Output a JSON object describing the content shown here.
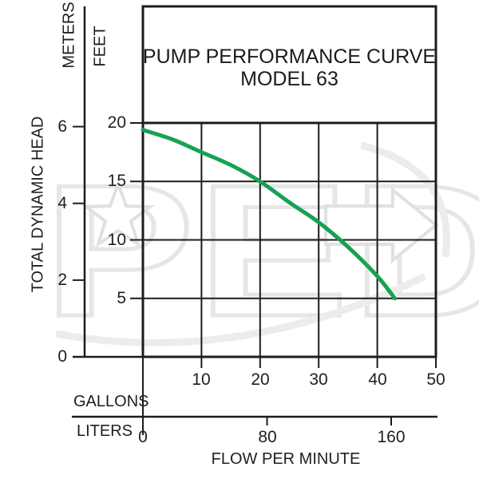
{
  "watermark": {
    "text": "PED",
    "star_icon": "star-icon",
    "arrow_icon": "arrow-right-icon",
    "color": "#e6e6e6"
  },
  "header": {
    "title_line1": "PUMP PERFORMANCE CURVE",
    "title_line2": "MODEL 63"
  },
  "y_axis": {
    "unit_primary": "METERS",
    "unit_secondary": "FEET",
    "title": "TOTAL DYNAMIC HEAD",
    "meters_ticks": [
      6,
      4,
      2,
      0
    ],
    "feet_ticks": [
      20,
      15,
      10,
      5
    ]
  },
  "x_axis": {
    "unit_primary": "GALLONS",
    "unit_secondary": "LITERS",
    "title": "FLOW PER MINUTE",
    "gallons_ticks": [
      10,
      20,
      30,
      40,
      50
    ],
    "liters_ticks": [
      0,
      80,
      160
    ]
  },
  "colors": {
    "line": "#1c1c1c",
    "text": "#1f1f1f",
    "curve": "#17a155",
    "watermark": "#e6e6e6"
  },
  "chart_data": {
    "type": "line",
    "title": "PUMP PERFORMANCE CURVE MODEL 63",
    "xlabel": "FLOW PER MINUTE",
    "ylabel": "TOTAL DYNAMIC HEAD",
    "x_units": [
      "GALLONS",
      "LITERS"
    ],
    "y_units": [
      "METERS",
      "FEET"
    ],
    "x_range_gallons": [
      0,
      50
    ],
    "x_range_liters_shown": [
      0,
      160
    ],
    "y_range_feet": [
      0,
      20
    ],
    "y_range_meters": [
      0,
      6
    ],
    "grid": true,
    "legend_position": "none",
    "series": [
      {
        "name": "Model 63 pump curve",
        "color": "#17a155",
        "points_gpm_vs_feet": [
          [
            0,
            19.4
          ],
          [
            5,
            18.6
          ],
          [
            10,
            17.5
          ],
          [
            15,
            16.4
          ],
          [
            20,
            15.0
          ],
          [
            25,
            13.2
          ],
          [
            30,
            11.5
          ],
          [
            35,
            9.4
          ],
          [
            40,
            6.9
          ],
          [
            43,
            5.0
          ]
        ]
      }
    ]
  }
}
